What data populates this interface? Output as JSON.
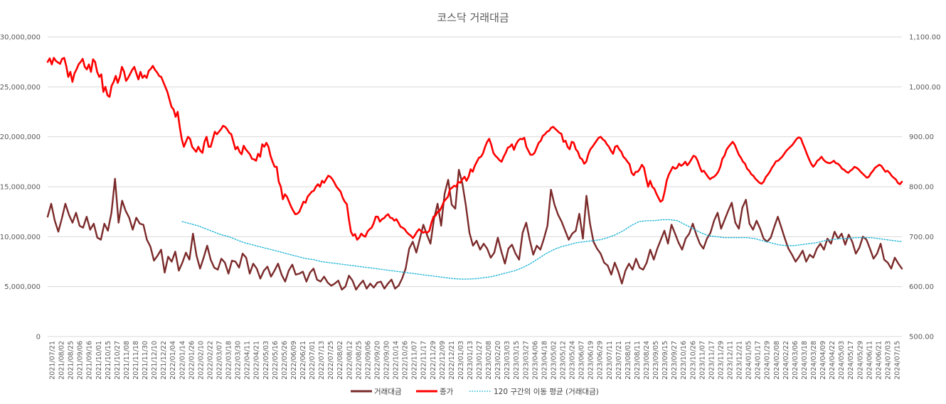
{
  "chart_data": {
    "type": "line",
    "title": "코스닥 거래대금",
    "y_left": {
      "ticks": [
        0,
        5000000,
        10000000,
        15000000,
        20000000,
        25000000,
        30000000
      ],
      "tick_labels": [
        "0",
        "5,000,000",
        "10,000,000",
        "15,000,000",
        "20,000,000",
        "25,000,000",
        "30,000,000"
      ],
      "ylim": [
        0,
        30000000
      ]
    },
    "y_right": {
      "ticks": [
        500,
        600,
        700,
        800,
        900,
        1000,
        1100
      ],
      "tick_labels": [
        "500.00",
        "600.00",
        "700.00",
        "800.00",
        "900.00",
        "1,000.00",
        "1,100.00"
      ],
      "ylim": [
        500,
        1100
      ]
    },
    "x_labels": [
      "2021/07/21",
      "2021/08/02",
      "2021/08/25",
      "2021/09/06",
      "2021/09/16",
      "2021/10/01",
      "2021/10/15",
      "2021/10/27",
      "2021/11/08",
      "2021/11/18",
      "2021/11/30",
      "2021/12/10",
      "2021/12/22",
      "2022/01/04",
      "2022/01/14",
      "2022/01/26",
      "2022/02/10",
      "2022/02/22",
      "2022/03/07",
      "2022/03/18",
      "2022/03/30",
      "2022/04/11",
      "2022/04/21",
      "2022/05/03",
      "2022/05/16",
      "2022/05/26",
      "2022/06/09",
      "2022/06/21",
      "2022/07/01",
      "2022/07/13",
      "2022/07/25",
      "2022/08/02",
      "2022/08/12",
      "2022/08/25",
      "2022/09/06",
      "2022/09/20",
      "2022/09/30",
      "2022/10/14",
      "2022/10/26",
      "2022/11/07",
      "2022/11/17",
      "2022/11/29",
      "2022/12/09",
      "2022/12/21",
      "2023/01/03",
      "2023/01/13",
      "2023/01/27",
      "2023/02/08",
      "2023/02/20",
      "2023/03/03",
      "2023/03/15",
      "2023/03/27",
      "2023/04/06",
      "2023/04/18",
      "2023/05/02",
      "2023/05/12",
      "2023/05/24",
      "2023/06/07",
      "2023/06/19",
      "2023/06/29",
      "2023/07/11",
      "2023/07/21",
      "2023/08/01",
      "2023/08/11",
      "2023/08/24",
      "2023/09/05",
      "2023/09/15",
      "2023/09/27",
      "2023/10/16",
      "2023/10/26",
      "2023/11/07",
      "2023/11/17",
      "2023/11/29",
      "2023/12/11",
      "2023/12/21",
      "2024/01/05",
      "2024/01/17",
      "2024/01/29",
      "2024/02/08",
      "2024/02/22",
      "2024/03/06",
      "2024/03/18",
      "2024/03/28",
      "2024/04/09",
      "2024/04/22",
      "2024/05/03",
      "2024/05/17",
      "2024/05/29",
      "2024/06/11",
      "2024/06/21",
      "2024/07/03",
      "2024/07/15"
    ],
    "series": [
      {
        "name": "거래대금",
        "axis": "left",
        "color": "#7b2a2a",
        "values": [
          12000000,
          13300000,
          11600000,
          10500000,
          11800000,
          13300000,
          12200000,
          11400000,
          12400000,
          11100000,
          10900000,
          12000000,
          10700000,
          11300000,
          9900000,
          9700000,
          11300000,
          10600000,
          12400000,
          15800000,
          11400000,
          13600000,
          12600000,
          11900000,
          10700000,
          11900000,
          11300000,
          11200000,
          9700000,
          9000000,
          7600000,
          8100000,
          8700000,
          6400000,
          8000000,
          7500000,
          8500000,
          6600000,
          7400000,
          8400000,
          7700000,
          10300000,
          8100000,
          6800000,
          7900000,
          9100000,
          7700000,
          6900000,
          6700000,
          7800000,
          7400000,
          6300000,
          7600000,
          7500000,
          6900000,
          8300000,
          7900000,
          6300000,
          7300000,
          6800000,
          5800000,
          6600000,
          7000000,
          6000000,
          6600000,
          7300000,
          6200000,
          5500000,
          6600000,
          7200000,
          6200000,
          6300000,
          6500000,
          5500000,
          6400000,
          6800000,
          5700000,
          5500000,
          6000000,
          5400000,
          5100000,
          5300000,
          5600000,
          4700000,
          5000000,
          6100000,
          5600000,
          4700000,
          5200000,
          5600000,
          4800000,
          5300000,
          4900000,
          5400000,
          5500000,
          4800000,
          5300000,
          5700000,
          4800000,
          5100000,
          5800000,
          6800000,
          8800000,
          9500000,
          8400000,
          9800000,
          11200000,
          10200000,
          9300000,
          11800000,
          13300000,
          11100000,
          14300000,
          15700000,
          13200000,
          12800000,
          16700000,
          15300000,
          13100000,
          10400000,
          9100000,
          9600000,
          8700000,
          9300000,
          8800000,
          7900000,
          8400000,
          9900000,
          8500000,
          7300000,
          8800000,
          9200000,
          8300000,
          7700000,
          10400000,
          11400000,
          9700000,
          8200000,
          9100000,
          8700000,
          9800000,
          11100000,
          14700000,
          13200000,
          12200000,
          11500000,
          10600000,
          9700000,
          10300000,
          10600000,
          12300000,
          9800000,
          14100000,
          11300000,
          9500000,
          8800000,
          8300000,
          7400000,
          7100000,
          6200000,
          7400000,
          6500000,
          5300000,
          6600000,
          7300000,
          6700000,
          7800000,
          6900000,
          6700000,
          7400000,
          8700000,
          7700000,
          8800000,
          9700000,
          10600000,
          9300000,
          11200000,
          10300000,
          9400000,
          8700000,
          9800000,
          10300000,
          11300000,
          10200000,
          9300000,
          8800000,
          9800000,
          10400000,
          11600000,
          12400000,
          10800000,
          11700000,
          12600000,
          13400000,
          11400000,
          10800000,
          12900000,
          13700000,
          11300000,
          10700000,
          11600000,
          10800000,
          9800000,
          9500000,
          9900000,
          11000000,
          12000000,
          10900000,
          9800000,
          8800000,
          8200000,
          7500000,
          8000000,
          8600000,
          7500000,
          8200000,
          7900000,
          8800000,
          9300000,
          8700000,
          9800000,
          9300000,
          10500000,
          9800000,
          10300000,
          9200000,
          10200000,
          9500000,
          8300000,
          8900000,
          10000000,
          9700000,
          8800000,
          7800000,
          8300000,
          9300000,
          7700000,
          7400000,
          6800000,
          7900000,
          7300000,
          6800000
        ]
      },
      {
        "name": "종가",
        "axis": "right",
        "color": "#ff0000",
        "values": [
          1050,
          1057,
          1045,
          1058,
          1052,
          1049,
          1046,
          1056,
          1058,
          1042,
          1020,
          1030,
          1010,
          1027,
          1035,
          1045,
          1050,
          1056,
          1040,
          1035,
          1045,
          1030,
          1055,
          1050,
          1030,
          1020,
          1025,
          990,
          1000,
          983,
          980,
          1002,
          1010,
          1022,
          1008,
          1020,
          1040,
          1031,
          1012,
          1018,
          1026,
          1034,
          1040,
          1027,
          1015,
          1030,
          1018,
          1023,
          1018,
          1032,
          1036,
          1042,
          1034,
          1029,
          1022,
          1020,
          1010,
          1000,
          990,
          975,
          960,
          955,
          940,
          950,
          920,
          895,
          880,
          890,
          900,
          896,
          880,
          875,
          870,
          880,
          872,
          868,
          890,
          900,
          880,
          880,
          895,
          910,
          905,
          910,
          915,
          922,
          920,
          915,
          908,
          905,
          890,
          875,
          880,
          870,
          865,
          882,
          875,
          870,
          865,
          856,
          855,
          852,
          866,
          860,
          885,
          880,
          888,
          880,
          862,
          850,
          840,
          840,
          810,
          800,
          775,
          785,
          780,
          770,
          760,
          752,
          745,
          746,
          750,
          760,
          770,
          768,
          780,
          785,
          790,
          792,
          800,
          805,
          800,
          812,
          808,
          815,
          822,
          820,
          815,
          808,
          800,
          795,
          790,
          778,
          770,
          765,
          735,
          710,
          702,
          705,
          694,
          698,
          706,
          702,
          700,
          710,
          715,
          718,
          727,
          740,
          740,
          730,
          735,
          737,
          742,
          745,
          738,
          737,
          732,
          735,
          728,
          720,
          718,
          715,
          709,
          705,
          702,
          697,
          703,
          710,
          715,
          711,
          708,
          710,
          708,
          712,
          728,
          740,
          742,
          750,
          752,
          760,
          770,
          775,
          780,
          795,
          798,
          802,
          800,
          810,
          808,
          815,
          820,
          812,
          820,
          835,
          830,
          842,
          850,
          858,
          860,
          867,
          880,
          890,
          896,
          884,
          868,
          862,
          858,
          853,
          850,
          860,
          868,
          878,
          880,
          885,
          874,
          885,
          892,
          896,
          895,
          898,
          880,
          872,
          864,
          864,
          868,
          878,
          888,
          892,
          902,
          905,
          910,
          912,
          918,
          920,
          916,
          912,
          908,
          906,
          890,
          892,
          880,
          875,
          890,
          888,
          875,
          870,
          858,
          855,
          846,
          850,
          865,
          875,
          880,
          886,
          892,
          898,
          900,
          895,
          892,
          885,
          880,
          872,
          866,
          880,
          882,
          875,
          870,
          860,
          856,
          850,
          845,
          828,
          823,
          830,
          830,
          836,
          844,
          838,
          818,
          800,
          812,
          800,
          796,
          786,
          778,
          770,
          773,
          790,
          812,
          824,
          832,
          840,
          836,
          838,
          846,
          842,
          845,
          850,
          843,
          848,
          855,
          862,
          860,
          852,
          840,
          830,
          832,
          826,
          820,
          815,
          818,
          820,
          824,
          830,
          840,
          856,
          862,
          874,
          880,
          885,
          890,
          884,
          874,
          864,
          858,
          850,
          846,
          836,
          832,
          825,
          822,
          816,
          812,
          808,
          806,
          810,
          819,
          824,
          830,
          838,
          844,
          851,
          852,
          856,
          860,
          866,
          872,
          876,
          880,
          884,
          890,
          896,
          899,
          897,
          886,
          876,
          865,
          855,
          846,
          840,
          845,
          852,
          855,
          860,
          854,
          850,
          848,
          847,
          849,
          852,
          847,
          846,
          842,
          836,
          834,
          830,
          828,
          832,
          835,
          840,
          838,
          835,
          830,
          826,
          822,
          818,
          820,
          827,
          832,
          838,
          841,
          844,
          842,
          836,
          830,
          832,
          828,
          822,
          818,
          815,
          808,
          805,
          810
        ]
      },
      {
        "name": "120 구간의 이동 평균 (거래대금)",
        "axis": "left",
        "color": "#1fb5d6",
        "start_x_label": "2022/01/14",
        "values": [
          11500000,
          11300000,
          11100000,
          10800000,
          10500000,
          10200000,
          10000000,
          9700000,
          9400000,
          9200000,
          9000000,
          8800000,
          8600000,
          8400000,
          8200000,
          8000000,
          7800000,
          7700000,
          7500000,
          7400000,
          7300000,
          7200000,
          7100000,
          7000000,
          6900000,
          6800000,
          6700000,
          6600000,
          6500000,
          6400000,
          6300000,
          6200000,
          6100000,
          6000000,
          5900000,
          5800000,
          5750000,
          5750000,
          5800000,
          5900000,
          6000000,
          6200000,
          6400000,
          6600000,
          6900000,
          7300000,
          7800000,
          8300000,
          8700000,
          9000000,
          9200000,
          9400000,
          9500000,
          9600000,
          9700000,
          9900000,
          10200000,
          10600000,
          11100000,
          11500000,
          11600000,
          11600000,
          11700000,
          11700000,
          11600000,
          11200000,
          10800000,
          10400000,
          10100000,
          10000000,
          9900000,
          9900000,
          9900000,
          9900000,
          9800000,
          9600000,
          9400000,
          9200000,
          9100000,
          9100000,
          9200000,
          9300000,
          9400000,
          9600000,
          9700000,
          9800000,
          9800000,
          9900000,
          9900000,
          9900000,
          9800000,
          9700000,
          9600000,
          9500000
        ]
      }
    ],
    "legend": {
      "position": "bottom",
      "entries": [
        "거래대금",
        "종가",
        "120 구간의 이동 평균 (거래대금)"
      ]
    },
    "grid": true
  }
}
